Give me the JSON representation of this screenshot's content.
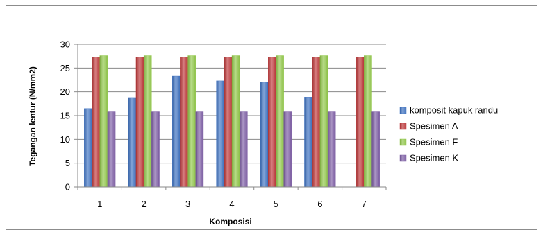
{
  "chart_data": {
    "type": "bar",
    "title": "",
    "xlabel": "Komposisi",
    "ylabel": "Tegangan lentur (N/mm2)",
    "categories": [
      "1",
      "2",
      "3",
      "4",
      "5",
      "6",
      "7"
    ],
    "ylim": [
      0,
      30
    ],
    "yticks": [
      "0",
      "5",
      "10",
      "15",
      "20",
      "25",
      "30"
    ],
    "grid": "horizontal",
    "legend_position": "right",
    "series": [
      {
        "name": "komposit kapuk randu",
        "color": "#3f73c3",
        "values": [
          16.5,
          18.8,
          23.3,
          22.3,
          22.1,
          18.9,
          null
        ]
      },
      {
        "name": "Spesimen A",
        "color": "#c0383a",
        "values": [
          27.3,
          27.3,
          27.3,
          27.3,
          27.3,
          27.3,
          27.3
        ]
      },
      {
        "name": "Spesimen F",
        "color": "#92c94a",
        "values": [
          27.6,
          27.6,
          27.6,
          27.6,
          27.6,
          27.6,
          27.6
        ]
      },
      {
        "name": "Spesimen K",
        "color": "#7e5ea6",
        "values": [
          15.8,
          15.8,
          15.8,
          15.8,
          15.8,
          15.8,
          15.8
        ]
      }
    ]
  }
}
